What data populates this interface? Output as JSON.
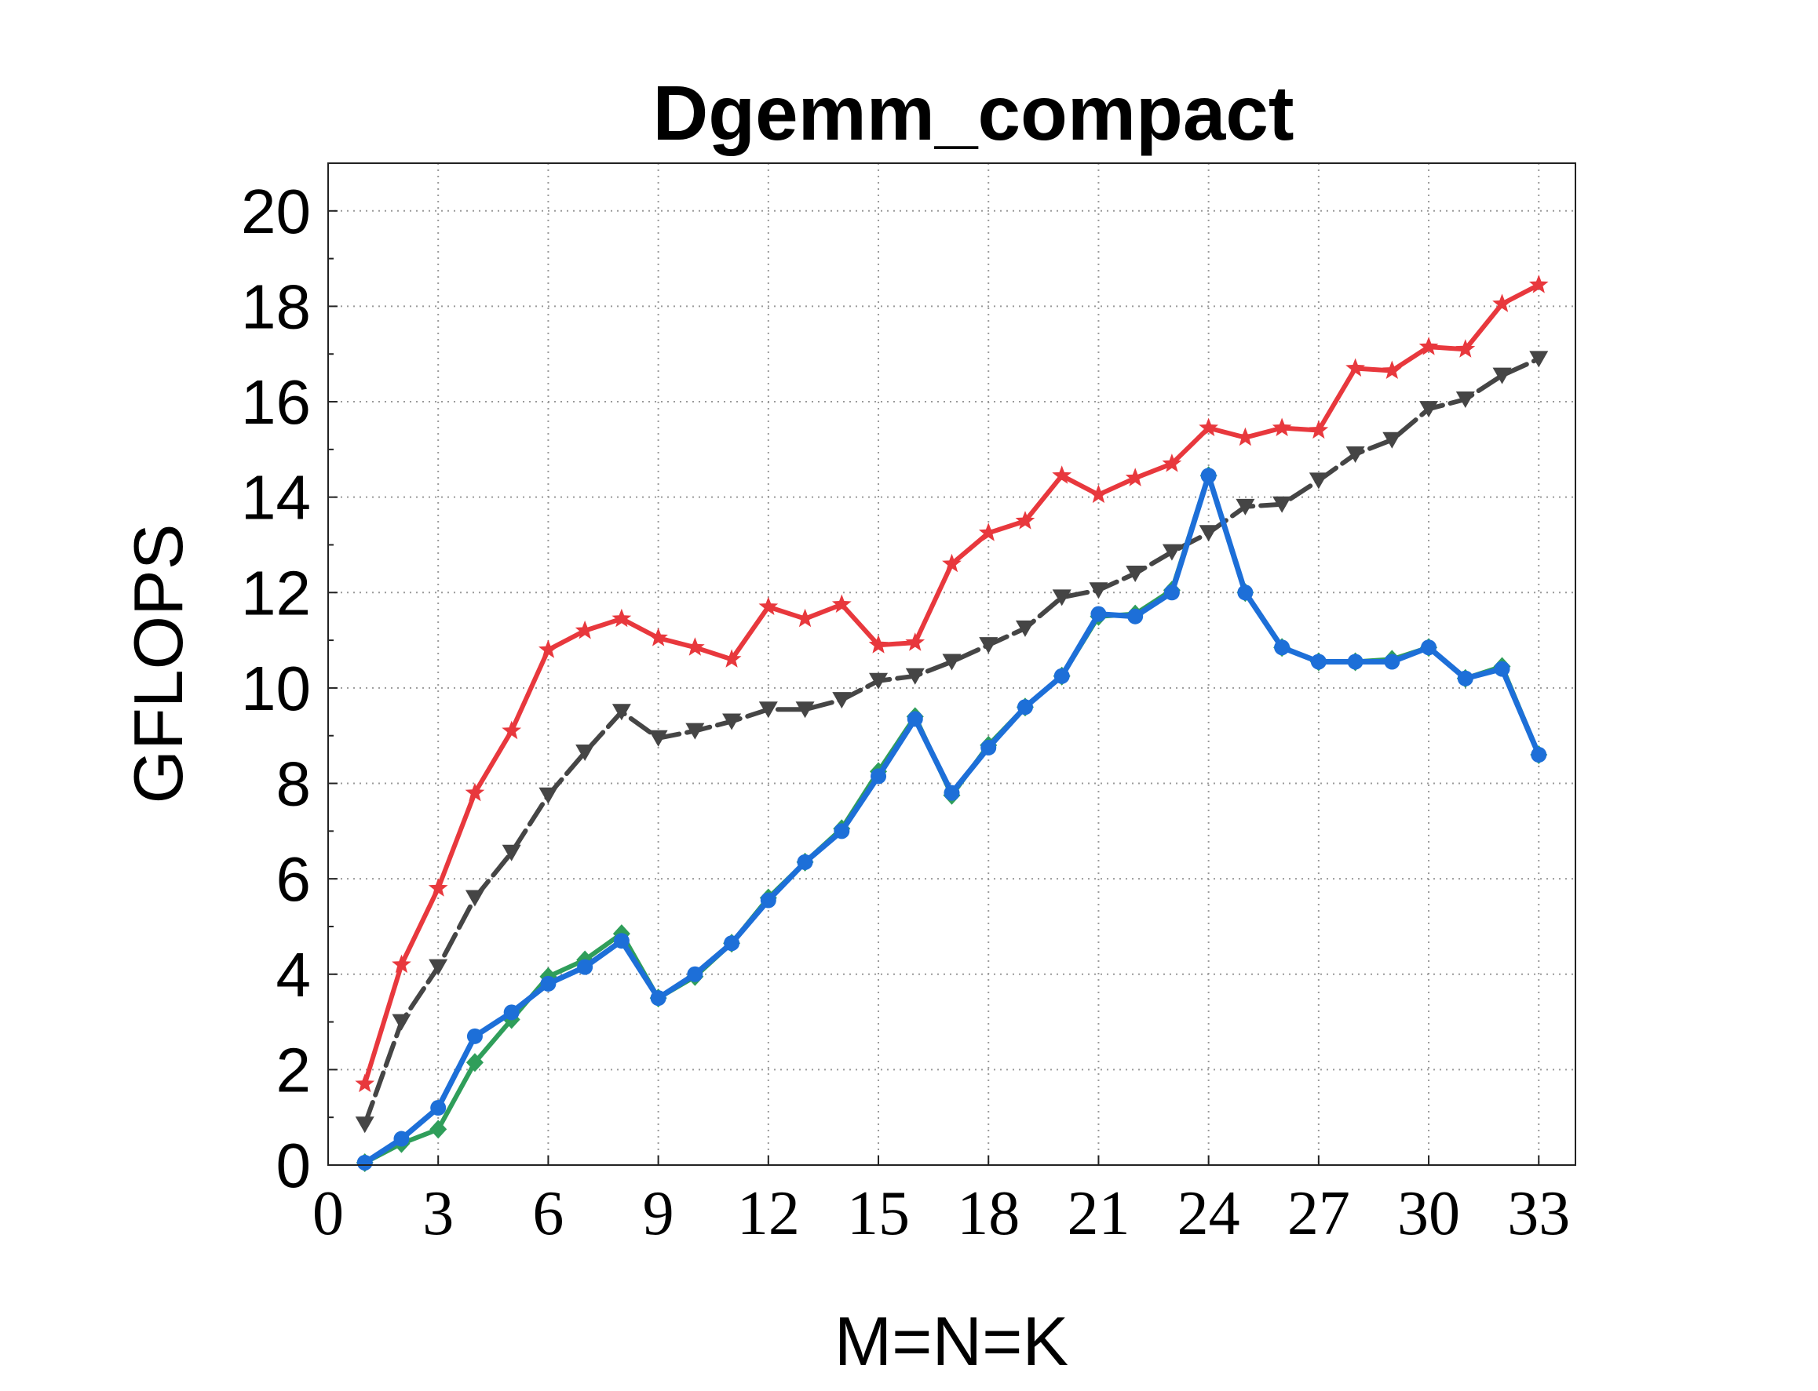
{
  "chart_data": {
    "type": "line",
    "title": "Dgemm_compact",
    "xlabel": "M=N=K",
    "ylabel": "GFLOPS",
    "xlim": [
      0,
      34
    ],
    "ylim": [
      0,
      21
    ],
    "xticks": [
      0,
      3,
      6,
      9,
      12,
      15,
      18,
      21,
      24,
      27,
      30,
      33
    ],
    "yticks": [
      0,
      2,
      4,
      6,
      8,
      10,
      12,
      14,
      16,
      18,
      20
    ],
    "grid": true,
    "x": [
      1,
      2,
      3,
      4,
      5,
      6,
      7,
      8,
      9,
      10,
      11,
      12,
      13,
      14,
      15,
      16,
      17,
      18,
      19,
      20,
      21,
      22,
      23,
      24,
      25,
      26,
      27,
      28,
      29,
      30,
      31,
      32,
      33
    ],
    "series": [
      {
        "color": "#e8383d",
        "marker": "star",
        "linestyle": "solid",
        "values": [
          1.7,
          4.2,
          5.8,
          7.8,
          9.1,
          10.8,
          11.2,
          11.45,
          11.05,
          10.85,
          10.6,
          11.7,
          11.45,
          11.75,
          10.9,
          10.95,
          12.6,
          13.25,
          13.5,
          14.45,
          14.05,
          14.4,
          14.7,
          15.45,
          15.25,
          15.45,
          15.4,
          16.7,
          16.65,
          17.15,
          17.1,
          18.05,
          18.45
        ]
      },
      {
        "color": "#454545",
        "marker": "triangle-down",
        "linestyle": "dashed",
        "values": [
          0.85,
          3.0,
          4.15,
          5.6,
          6.55,
          7.75,
          8.65,
          9.5,
          8.95,
          9.1,
          9.3,
          9.55,
          9.55,
          9.75,
          10.15,
          10.25,
          10.55,
          10.9,
          11.25,
          11.9,
          12.05,
          12.4,
          12.85,
          13.25,
          13.8,
          13.85,
          14.35,
          14.9,
          15.2,
          15.85,
          16.05,
          16.55,
          16.9
        ]
      },
      {
        "color": "#2f9e5a",
        "marker": "diamond",
        "linestyle": "solid",
        "values": [
          0.05,
          0.45,
          0.75,
          2.15,
          3.05,
          3.95,
          4.3,
          4.85,
          3.5,
          3.95,
          4.65,
          5.6,
          6.35,
          7.05,
          8.25,
          9.4,
          7.75,
          8.8,
          9.6,
          10.25,
          11.5,
          11.55,
          12.05,
          14.45,
          12.0,
          10.85,
          10.55,
          10.55,
          10.6,
          10.85,
          10.2,
          10.45,
          8.6
        ]
      },
      {
        "color": "#1d6fd8",
        "marker": "circle",
        "linestyle": "solid",
        "values": [
          0.05,
          0.55,
          1.2,
          2.7,
          3.2,
          3.8,
          4.15,
          4.7,
          3.5,
          4.0,
          4.65,
          5.55,
          6.35,
          7.0,
          8.15,
          9.35,
          7.8,
          8.75,
          9.6,
          10.25,
          11.55,
          11.5,
          12.0,
          14.45,
          12.0,
          10.85,
          10.55,
          10.55,
          10.55,
          10.85,
          10.2,
          10.4,
          8.6
        ]
      }
    ]
  }
}
